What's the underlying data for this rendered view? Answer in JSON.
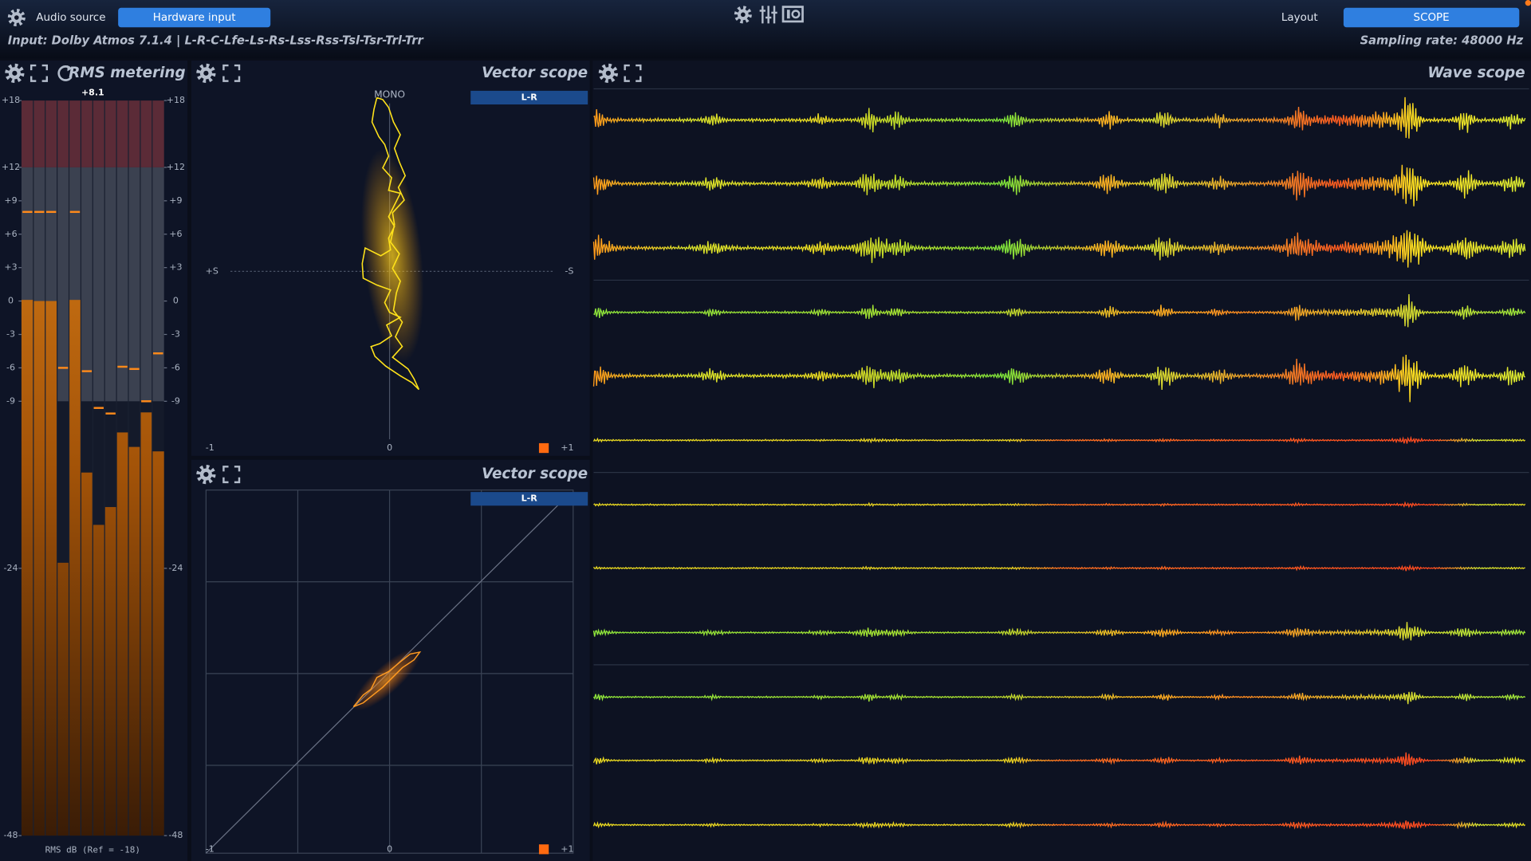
{
  "header": {
    "audio_source_label": "Audio source",
    "audio_source_button": "Hardware input",
    "layout_label": "Layout",
    "layout_button": "SCOPE",
    "input": "Input: Dolby Atmos 7.1.4 | L-R-C-Lfe-Ls-Rs-Lss-Rss-Tsl-Tsr-Trl-Trr",
    "sampling_rate": "Sampling rate: 48000 Hz"
  },
  "rms_meter": {
    "title": "RMS metering",
    "peak_label": "+8.1",
    "caption": "RMS dB (Ref = -18)",
    "ylim": [
      -48,
      18
    ],
    "yticks": [
      {
        "value": 18,
        "label": "+18"
      },
      {
        "value": 12,
        "label": "+12"
      },
      {
        "value": 9,
        "label": "+9"
      },
      {
        "value": 6,
        "label": "+6"
      },
      {
        "value": 3,
        "label": "+3"
      },
      0,
      -3,
      -6,
      -9,
      -24,
      -48
    ],
    "levels": [
      0.1,
      0,
      0,
      -23.5,
      0.1,
      -15.4,
      -20.1,
      -18.5,
      -11.8,
      -13.1,
      -10,
      -13.5
    ],
    "peaks": [
      8,
      8,
      8,
      -6,
      8,
      -6.3,
      -9.6,
      -10.1,
      -5.9,
      -6.1,
      -9,
      -4.7
    ]
  },
  "vector_scope_1": {
    "title": "Vector scope",
    "mode": "L-R",
    "top_label": "MONO",
    "left_label": "+S",
    "right_label": "-S",
    "x_labels": [
      "-1",
      "0",
      "+1"
    ]
  },
  "vector_scope_2": {
    "title": "Vector scope",
    "mode": "L-R",
    "x_labels": [
      "-1",
      "0",
      "+1"
    ]
  },
  "wave_scope": {
    "title": "Wave scope"
  }
}
